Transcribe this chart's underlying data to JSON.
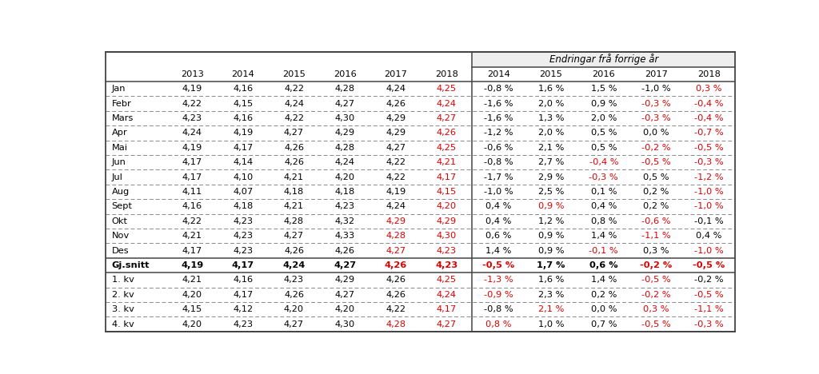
{
  "header_row1_label": "Endringar frå forrige år",
  "header_years_main": [
    "2013",
    "2014",
    "2015",
    "2016",
    "2017",
    "2018"
  ],
  "header_years_change": [
    "2014",
    "2015",
    "2016",
    "2017",
    "2018"
  ],
  "rows": [
    [
      "Jan",
      "4,19",
      "4,16",
      "4,22",
      "4,28",
      "4,24",
      "4,25",
      "-0,8 %",
      "1,6 %",
      "1,5 %",
      "-1,0 %",
      "0,3 %"
    ],
    [
      "Febr",
      "4,22",
      "4,15",
      "4,24",
      "4,27",
      "4,26",
      "4,24",
      "-1,6 %",
      "2,0 %",
      "0,9 %",
      "-0,3 %",
      "-0,4 %"
    ],
    [
      "Mars",
      "4,23",
      "4,16",
      "4,22",
      "4,30",
      "4,29",
      "4,27",
      "-1,6 %",
      "1,3 %",
      "2,0 %",
      "-0,3 %",
      "-0,4 %"
    ],
    [
      "Apr",
      "4,24",
      "4,19",
      "4,27",
      "4,29",
      "4,29",
      "4,26",
      "-1,2 %",
      "2,0 %",
      "0,5 %",
      "0,0 %",
      "-0,7 %"
    ],
    [
      "Mai",
      "4,19",
      "4,17",
      "4,26",
      "4,28",
      "4,27",
      "4,25",
      "-0,6 %",
      "2,1 %",
      "0,5 %",
      "-0,2 %",
      "-0,5 %"
    ],
    [
      "Jun",
      "4,17",
      "4,14",
      "4,26",
      "4,24",
      "4,22",
      "4,21",
      "-0,8 %",
      "2,7 %",
      "-0,4 %",
      "-0,5 %",
      "-0,3 %"
    ],
    [
      "Jul",
      "4,17",
      "4,10",
      "4,21",
      "4,20",
      "4,22",
      "4,17",
      "-1,7 %",
      "2,9 %",
      "-0,3 %",
      "0,5 %",
      "-1,2 %"
    ],
    [
      "Aug",
      "4,11",
      "4,07",
      "4,18",
      "4,18",
      "4,19",
      "4,15",
      "-1,0 %",
      "2,5 %",
      "0,1 %",
      "0,2 %",
      "-1,0 %"
    ],
    [
      "Sept",
      "4,16",
      "4,18",
      "4,21",
      "4,23",
      "4,24",
      "4,20",
      "0,4 %",
      "0,9 %",
      "0,4 %",
      "0,2 %",
      "-1,0 %"
    ],
    [
      "Okt",
      "4,22",
      "4,23",
      "4,28",
      "4,32",
      "4,29",
      "4,29",
      "0,4 %",
      "1,2 %",
      "0,8 %",
      "-0,6 %",
      "-0,1 %"
    ],
    [
      "Nov",
      "4,21",
      "4,23",
      "4,27",
      "4,33",
      "4,28",
      "4,30",
      "0,6 %",
      "0,9 %",
      "1,4 %",
      "-1,1 %",
      "0,4 %"
    ],
    [
      "Des",
      "4,17",
      "4,23",
      "4,26",
      "4,26",
      "4,27",
      "4,23",
      "1,4 %",
      "0,9 %",
      "-0,1 %",
      "0,3 %",
      "-1,0 %"
    ],
    [
      "Gj.snitt",
      "4,19",
      "4,17",
      "4,24",
      "4,27",
      "4,26",
      "4,23",
      "-0,5 %",
      "1,7 %",
      "0,6 %",
      "-0,2 %",
      "-0,5 %"
    ],
    [
      "1. kv",
      "4,21",
      "4,16",
      "4,23",
      "4,29",
      "4,26",
      "4,25",
      "-1,3 %",
      "1,6 %",
      "1,4 %",
      "-0,5 %",
      "-0,2 %"
    ],
    [
      "2. kv",
      "4,20",
      "4,17",
      "4,26",
      "4,27",
      "4,26",
      "4,24",
      "-0,9 %",
      "2,3 %",
      "0,2 %",
      "-0,2 %",
      "-0,5 %"
    ],
    [
      "3. kv",
      "4,15",
      "4,12",
      "4,20",
      "4,20",
      "4,22",
      "4,17",
      "-0,8 %",
      "2,1 %",
      "0,0 %",
      "0,3 %",
      "-1,1 %"
    ],
    [
      "4. kv",
      "4,20",
      "4,23",
      "4,27",
      "4,30",
      "4,28",
      "4,27",
      "0,8 %",
      "1,0 %",
      "0,7 %",
      "-0,5 %",
      "-0,3 %"
    ]
  ],
  "red_cells": {
    "0": [
      6,
      11
    ],
    "1": [
      6,
      10,
      11
    ],
    "2": [
      6,
      10,
      11
    ],
    "3": [
      6,
      11
    ],
    "4": [
      6,
      10,
      11
    ],
    "5": [
      6,
      9,
      10,
      11
    ],
    "6": [
      6,
      9,
      11
    ],
    "7": [
      6,
      11
    ],
    "8": [
      6,
      8,
      11
    ],
    "9": [
      5,
      6,
      10
    ],
    "10": [
      5,
      6,
      10
    ],
    "11": [
      5,
      6,
      9,
      11
    ],
    "12": [
      5,
      6,
      7,
      10,
      11
    ],
    "13": [
      6,
      7,
      10
    ],
    "14": [
      6,
      7,
      10,
      11
    ],
    "15": [
      6,
      8,
      10,
      11
    ],
    "16": [
      5,
      6,
      7,
      10,
      11
    ]
  },
  "bold_row": 12,
  "gjsnitt_display_row": 14,
  "background_color": "#ffffff",
  "text_color": "#000000",
  "red_color": "#dd0000"
}
